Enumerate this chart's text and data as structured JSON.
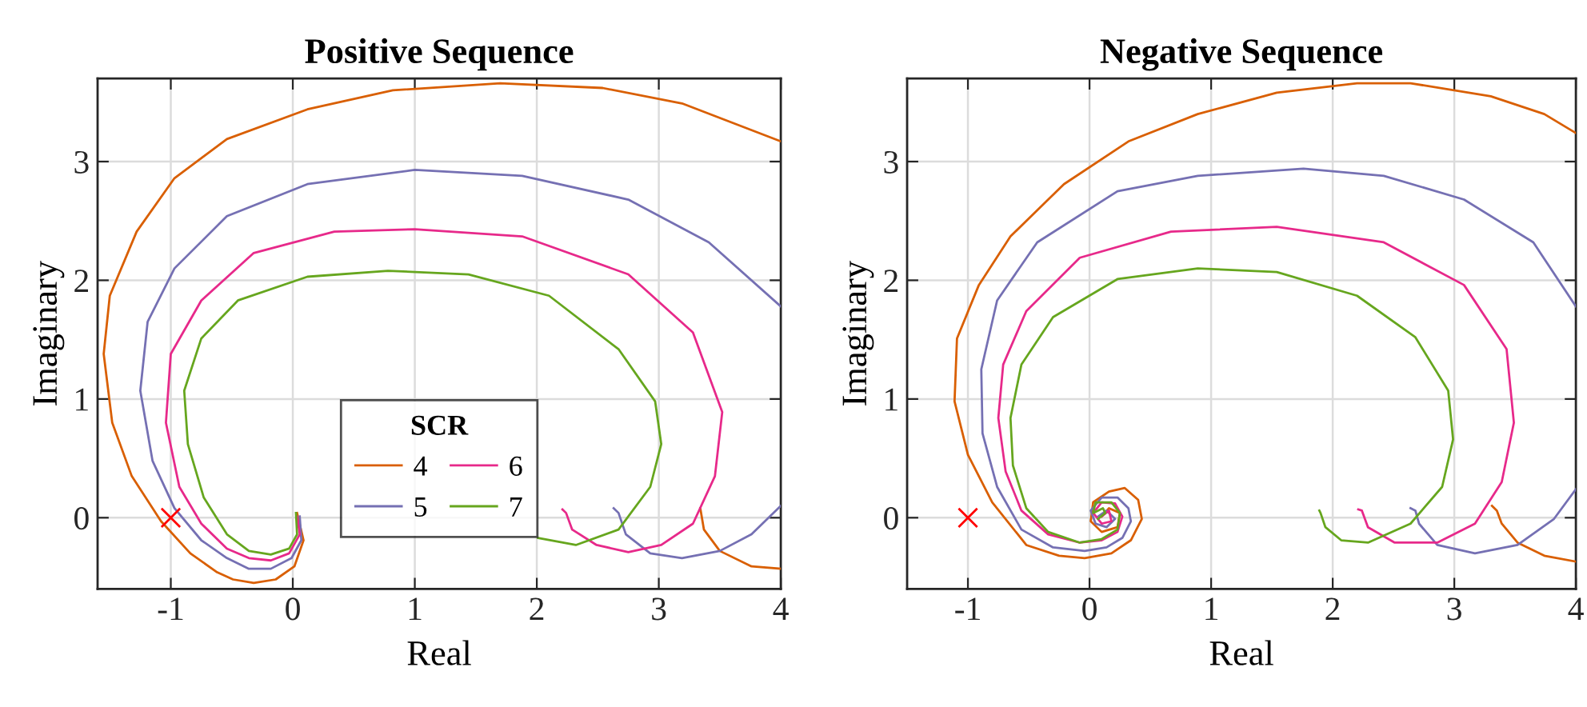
{
  "chart_data": [
    {
      "type": "line",
      "title": "Positive Sequence",
      "xlabel": "Real",
      "ylabel": "Imaginary",
      "xlim": [
        -1.6,
        4
      ],
      "ylim": [
        -0.6,
        3.7
      ],
      "xticks": [
        -1,
        0,
        1,
        2,
        3,
        4
      ],
      "yticks": [
        0,
        1,
        2,
        3
      ],
      "grid": true,
      "legend": "bottom",
      "legend_title": "SCR",
      "series": [
        {
          "name": "4",
          "color": "#d95f02",
          "x": [
            0.035,
            0.088,
            0.013,
            -0.14,
            -0.32,
            -0.49,
            -0.62,
            -0.84,
            -1.08,
            -1.32,
            -1.48,
            -1.55,
            -1.5,
            -1.28,
            -0.97,
            -0.54,
            0.12,
            0.82,
            1.7,
            2.54,
            3.19,
            4.0,
            null,
            4.0,
            3.76,
            3.5,
            3.37,
            3.34
          ],
          "values": [
            0.04,
            -0.19,
            -0.41,
            -0.52,
            -0.55,
            -0.52,
            -0.46,
            -0.3,
            -0.03,
            0.35,
            0.8,
            1.38,
            1.87,
            2.41,
            2.86,
            3.19,
            3.44,
            3.6,
            3.66,
            3.62,
            3.49,
            3.17,
            null,
            -0.43,
            -0.41,
            -0.28,
            -0.1,
            0.08
          ]
        },
        {
          "name": "5",
          "color": "#7570b3",
          "x": [
            0.057,
            0.07,
            -0.01,
            -0.18,
            -0.36,
            -0.54,
            -0.75,
            -0.97,
            -1.15,
            -1.25,
            -1.19,
            -0.97,
            -0.54,
            0.12,
            1.0,
            1.88,
            2.75,
            3.41,
            4.0,
            null,
            4.0,
            3.76,
            3.5,
            3.19,
            2.93,
            2.73,
            2.67,
            2.63
          ],
          "values": [
            0.01,
            -0.19,
            -0.34,
            -0.43,
            -0.43,
            -0.34,
            -0.19,
            0.08,
            0.48,
            1.07,
            1.65,
            2.1,
            2.54,
            2.81,
            2.93,
            2.88,
            2.68,
            2.32,
            1.78,
            null,
            0.1,
            -0.14,
            -0.28,
            -0.34,
            -0.3,
            -0.14,
            0.04,
            0.08
          ]
        },
        {
          "name": "6",
          "color": "#e7298a",
          "x": [
            0.035,
            0.057,
            -0.03,
            -0.18,
            -0.36,
            -0.54,
            -0.75,
            -0.93,
            -1.04,
            -1.0,
            -0.75,
            -0.32,
            0.34,
            1.0,
            1.88,
            2.75,
            3.28,
            3.52,
            3.46,
            3.28,
            3.02,
            2.75,
            2.49,
            2.29,
            2.24,
            2.21
          ],
          "values": [
            0.01,
            -0.14,
            -0.3,
            -0.36,
            -0.34,
            -0.26,
            -0.05,
            0.26,
            0.8,
            1.38,
            1.83,
            2.23,
            2.41,
            2.43,
            2.37,
            2.05,
            1.56,
            0.89,
            0.35,
            -0.05,
            -0.23,
            -0.29,
            -0.23,
            -0.1,
            0.04,
            0.07
          ]
        },
        {
          "name": "7",
          "color": "#66a61e",
          "x": [
            0.026,
            0.035,
            -0.03,
            -0.18,
            -0.36,
            -0.54,
            -0.73,
            -0.86,
            -0.89,
            -0.75,
            -0.45,
            0.12,
            0.78,
            1.44,
            2.1,
            2.67,
            2.97,
            3.02,
            2.93,
            2.67,
            2.32,
            2.01
          ],
          "values": [
            0.04,
            -0.14,
            -0.26,
            -0.31,
            -0.28,
            -0.14,
            0.17,
            0.62,
            1.07,
            1.51,
            1.83,
            2.03,
            2.08,
            2.05,
            1.87,
            1.42,
            0.98,
            0.62,
            0.26,
            -0.1,
            -0.23,
            -0.17
          ]
        },
        {
          "type": "scatter",
          "marker": "cross",
          "color": "#ff0000",
          "x": [
            -1
          ],
          "values": [
            0
          ]
        }
      ]
    },
    {
      "type": "line",
      "title": "Negative Sequence",
      "xlabel": "Real",
      "ylabel": "Imaginary",
      "xlim": [
        -1.5,
        4
      ],
      "ylim": [
        -0.6,
        3.7
      ],
      "xticks": [
        -1,
        0,
        1,
        2,
        3,
        4
      ],
      "yticks": [
        0,
        1,
        2,
        3
      ],
      "grid": true,
      "series": [
        {
          "color": "#d95f02",
          "x": [
            0.1,
            0.16,
            0.25,
            0.23,
            0.1,
            0.01,
            0.03,
            0.16,
            0.29,
            0.4,
            0.43,
            0.34,
            0.18,
            -0.04,
            -0.25,
            -0.52,
            -0.8,
            -1.0,
            -1.11,
            -1.09,
            -0.91,
            -0.65,
            -0.21,
            0.32,
            0.89,
            1.54,
            2.2,
            2.64,
            3.3,
            3.74,
            4.0,
            null,
            4.0,
            3.74,
            3.52,
            3.39,
            3.35,
            3.31
          ],
          "values": [
            0.01,
            0.08,
            0.04,
            -0.08,
            -0.12,
            -0.03,
            0.13,
            0.22,
            0.25,
            0.15,
            -0.01,
            -0.19,
            -0.3,
            -0.34,
            -0.32,
            -0.23,
            0.13,
            0.53,
            0.98,
            1.51,
            1.96,
            2.37,
            2.81,
            3.17,
            3.4,
            3.58,
            3.66,
            3.66,
            3.55,
            3.4,
            3.24,
            null,
            -0.37,
            -0.32,
            -0.21,
            -0.05,
            0.06,
            0.1
          ]
        },
        {
          "color": "#7570b3",
          "x": [
            0.07,
            0.14,
            0.21,
            0.14,
            0.05,
            0.01,
            0.1,
            0.23,
            0.32,
            0.34,
            0.27,
            0.14,
            -0.04,
            -0.3,
            -0.56,
            -0.76,
            -0.88,
            -0.89,
            -0.76,
            -0.43,
            0.23,
            0.89,
            1.76,
            2.42,
            3.08,
            3.65,
            4.0,
            null,
            4.0,
            3.82,
            3.52,
            3.17,
            2.86,
            2.71,
            2.68,
            2.64
          ],
          "values": [
            0.01,
            0.06,
            -0.01,
            -0.08,
            -0.05,
            0.06,
            0.17,
            0.17,
            0.08,
            -0.03,
            -0.17,
            -0.25,
            -0.28,
            -0.25,
            -0.1,
            0.26,
            0.71,
            1.25,
            1.83,
            2.32,
            2.75,
            2.88,
            2.94,
            2.88,
            2.68,
            2.32,
            1.78,
            null,
            0.24,
            -0.01,
            -0.23,
            -0.3,
            -0.23,
            -0.05,
            0.06,
            0.08
          ]
        },
        {
          "color": "#e7298a",
          "x": [
            0.1,
            0.16,
            0.18,
            0.1,
            0.03,
            0.1,
            0.21,
            0.27,
            0.23,
            0.1,
            -0.08,
            -0.34,
            -0.56,
            -0.69,
            -0.75,
            -0.71,
            -0.52,
            -0.08,
            0.67,
            1.54,
            2.42,
            3.08,
            3.43,
            3.49,
            3.39,
            3.17,
            2.86,
            2.51,
            2.29,
            2.24,
            2.21
          ],
          "values": [
            0.01,
            0.06,
            -0.03,
            -0.05,
            0.04,
            0.13,
            0.12,
            0.01,
            -0.12,
            -0.19,
            -0.21,
            -0.14,
            0.06,
            0.39,
            0.84,
            1.29,
            1.74,
            2.19,
            2.41,
            2.45,
            2.32,
            1.96,
            1.42,
            0.8,
            0.3,
            -0.05,
            -0.21,
            -0.21,
            -0.08,
            0.06,
            0.07
          ]
        },
        {
          "color": "#66a61e",
          "x": [
            0.07,
            0.13,
            0.11,
            0.03,
            0.05,
            0.18,
            0.25,
            0.23,
            0.1,
            -0.08,
            -0.34,
            -0.52,
            -0.63,
            -0.65,
            -0.56,
            -0.3,
            0.23,
            0.89,
            1.54,
            2.2,
            2.68,
            2.95,
            2.99,
            2.9,
            2.64,
            2.29,
            2.07,
            1.94,
            1.9,
            1.89
          ],
          "values": [
            -0.01,
            0.04,
            0.08,
            0.04,
            0.13,
            0.13,
            0.04,
            -0.1,
            -0.18,
            -0.21,
            -0.12,
            0.08,
            0.44,
            0.84,
            1.29,
            1.69,
            2.01,
            2.1,
            2.07,
            1.87,
            1.52,
            1.07,
            0.66,
            0.26,
            -0.05,
            -0.21,
            -0.19,
            -0.08,
            0.04,
            0.06
          ]
        },
        {
          "type": "scatter",
          "marker": "cross",
          "color": "#ff0000",
          "x": [
            -1
          ],
          "values": [
            0
          ]
        }
      ]
    }
  ]
}
